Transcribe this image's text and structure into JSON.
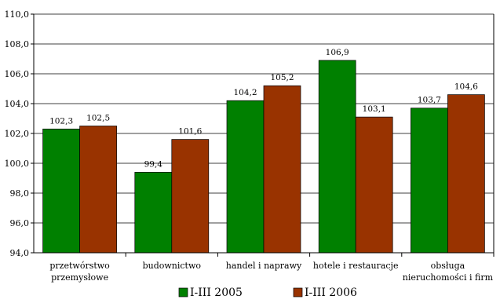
{
  "chart_data": {
    "type": "bar",
    "title": "",
    "xlabel": "",
    "ylabel": "",
    "ylim": [
      94.0,
      110.0
    ],
    "y_ticks": [
      "94,0",
      "96,0",
      "98,0",
      "100,0",
      "102,0",
      "104,0",
      "106,0",
      "108,0",
      "110,0"
    ],
    "y_tick_values": [
      94,
      96,
      98,
      100,
      102,
      104,
      106,
      108,
      110
    ],
    "grid": true,
    "legend_position": "bottom",
    "categories": [
      [
        "przetwórstwo",
        "przemysłowe"
      ],
      [
        "budownictwo"
      ],
      [
        "handel i naprawy"
      ],
      [
        "hotele i restauracje"
      ],
      [
        "obsługa",
        "nieruchomości i firm"
      ]
    ],
    "series": [
      {
        "name": "I-III 2005",
        "color": "#008000",
        "values": [
          102.3,
          99.4,
          104.2,
          106.9,
          103.7
        ],
        "labels": [
          "102,3",
          "99,4",
          "104,2",
          "106,9",
          "103,7"
        ]
      },
      {
        "name": "I-III 2006",
        "color": "#993300",
        "values": [
          102.5,
          101.6,
          105.2,
          103.1,
          104.6
        ],
        "labels": [
          "102,5",
          "101,6",
          "105,2",
          "103,1",
          "104,6"
        ]
      }
    ]
  }
}
